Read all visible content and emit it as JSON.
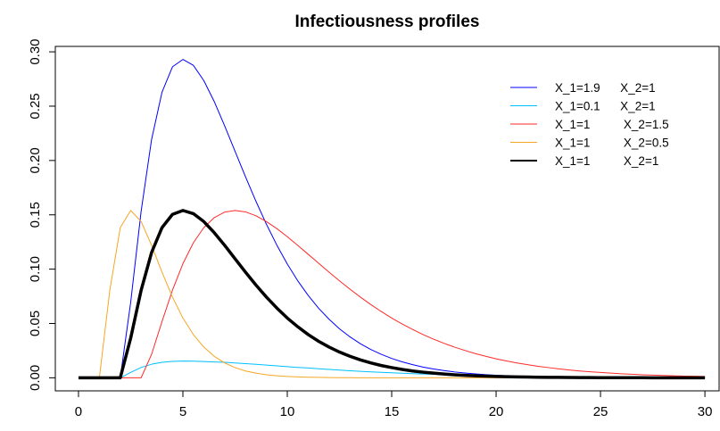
{
  "chart_data": {
    "type": "line",
    "title": "Infectiousness profiles",
    "x": [
      0,
      0.5,
      1,
      1.5,
      2,
      2.5,
      3,
      3.5,
      4,
      4.5,
      5,
      5.5,
      6,
      6.5,
      7,
      7.5,
      8,
      8.5,
      9,
      9.5,
      10,
      10.5,
      11,
      11.5,
      12,
      12.5,
      13,
      13.5,
      14,
      14.5,
      15,
      15.5,
      16,
      16.5,
      17,
      17.5,
      18,
      18.5,
      19,
      19.5,
      20,
      20.5,
      21,
      21.5,
      22,
      22.5,
      23,
      23.5,
      24,
      24.5,
      25,
      25.5,
      26,
      26.5,
      27,
      27.5,
      28,
      28.5,
      29,
      29.5,
      30
    ],
    "series": [
      {
        "name": "X_1=1.9      X_2=1",
        "color": "#0000ff",
        "width": 1,
        "values": [
          0,
          0,
          0,
          0,
          0,
          0.0696,
          0.1533,
          0.2193,
          0.2629,
          0.2862,
          0.293,
          0.2876,
          0.2736,
          0.2543,
          0.2319,
          0.2084,
          0.1849,
          0.1624,
          0.1413,
          0.1221,
          0.1047,
          0.0893,
          0.0758,
          0.064,
          0.0539,
          0.0451,
          0.0377,
          0.0314,
          0.026,
          0.0216,
          0.0178,
          0.0147,
          0.0121,
          0.0099,
          0.0081,
          0.0067,
          0.0054,
          0.0044,
          0.0036,
          0.0029,
          0.0024,
          0.0019,
          0.0016,
          0.0013,
          0.001,
          0.0008,
          0.0007,
          0.0005,
          0.0004,
          0.0004,
          0.0003,
          0.0002,
          0.0002,
          0.0001,
          0.0001,
          0.0001,
          0.0001,
          0.0001,
          0,
          0,
          0
        ]
      },
      {
        "name": "X_1=0.1      X_2=1",
        "color": "#00bfff",
        "width": 1,
        "values": [
          0,
          0,
          0,
          0,
          0,
          0.005,
          0.0095,
          0.0125,
          0.0143,
          0.0151,
          0.0154,
          0.0153,
          0.015,
          0.0146,
          0.0143,
          0.0137,
          0.0131,
          0.0124,
          0.0117,
          0.011,
          0.0103,
          0.0096,
          0.009,
          0.0083,
          0.0077,
          0.0071,
          0.0065,
          0.006,
          0.0055,
          0.005,
          0.0046,
          0.0042,
          0.0038,
          0.0035,
          0.0032,
          0.0029,
          0.0026,
          0.0024,
          0.0022,
          0.002,
          0.0018,
          0.0016,
          0.0014,
          0.0013,
          0.0012,
          0.0011,
          0.001,
          0.0009,
          0.0008,
          0.0007,
          0.0006,
          0.0006,
          0.0005,
          0.0005,
          0.0004,
          0.0004,
          0.0003,
          0.0003,
          0.0003,
          0.0002,
          0.0002
        ]
      },
      {
        "name": "X_1=1          X_2=1.5",
        "color": "#ff2a2a",
        "width": 1,
        "values": [
          0,
          0,
          0,
          0,
          0,
          0,
          0,
          0.0216,
          0.0518,
          0.0806,
          0.105,
          0.1242,
          0.1382,
          0.1474,
          0.1525,
          0.154,
          0.1527,
          0.1491,
          0.1438,
          0.1373,
          0.1299,
          0.1219,
          0.1137,
          0.1054,
          0.0972,
          0.0892,
          0.0816,
          0.0743,
          0.0674,
          0.061,
          0.055,
          0.0495,
          0.0445,
          0.0398,
          0.0356,
          0.0318,
          0.0283,
          0.0252,
          0.0223,
          0.0198,
          0.0175,
          0.0155,
          0.0137,
          0.0121,
          0.0106,
          0.0094,
          0.0082,
          0.0072,
          0.0063,
          0.0056,
          0.0049,
          0.0043,
          0.0037,
          0.0033,
          0.0028,
          0.0025,
          0.0022,
          0.0019,
          0.0016,
          0.0014,
          0.0012
        ]
      },
      {
        "name": "X_1=1          X_2=0.5",
        "color": "#f5a623",
        "width": 1,
        "values": [
          0,
          0,
          0,
          0.0806,
          0.1382,
          0.154,
          0.1438,
          0.1219,
          0.0972,
          0.0743,
          0.055,
          0.0398,
          0.0283,
          0.0198,
          0.0137,
          0.0094,
          0.0063,
          0.0043,
          0.0028,
          0.0019,
          0.0012,
          0.0008,
          0.0005,
          0.0004,
          0.0002,
          0.0001,
          0.0001,
          0,
          0,
          0,
          0,
          0,
          0,
          0,
          0,
          0,
          0,
          0,
          0,
          0,
          0,
          0,
          0,
          0,
          0,
          0,
          0,
          0,
          0,
          0,
          0,
          0,
          0,
          0,
          0,
          0,
          0,
          0,
          0,
          0,
          0
        ]
      },
      {
        "name": "X_1=1          X_2=1",
        "color": "#000000",
        "width": 3.5,
        "values": [
          0,
          0,
          0,
          0,
          0,
          0.0366,
          0.0806,
          0.1153,
          0.1382,
          0.1504,
          0.154,
          0.1511,
          0.1438,
          0.1336,
          0.1219,
          0.1095,
          0.0972,
          0.0853,
          0.0743,
          0.0642,
          0.055,
          0.047,
          0.0398,
          0.0336,
          0.0283,
          0.0237,
          0.0198,
          0.0165,
          0.0137,
          0.0113,
          0.0094,
          0.0077,
          0.0063,
          0.0052,
          0.0043,
          0.0035,
          0.0028,
          0.0023,
          0.0019,
          0.0015,
          0.0012,
          0.001,
          0.0008,
          0.0007,
          0.0005,
          0.0004,
          0.0004,
          0.0003,
          0.0002,
          0.0002,
          0.0001,
          0.0001,
          0.0001,
          0.0001,
          0.0001,
          0,
          0,
          0,
          0,
          0,
          0
        ]
      }
    ],
    "xlim": [
      -1.11,
      30.68
    ],
    "ylim": [
      -0.012,
      0.305
    ],
    "xticks": [
      0,
      5,
      10,
      15,
      20,
      25,
      30
    ],
    "yticks": [
      {
        "value": 0,
        "label": "0.00"
      },
      {
        "value": 0.05,
        "label": "0.05"
      },
      {
        "value": 0.1,
        "label": "0.10"
      },
      {
        "value": 0.15,
        "label": "0.15"
      },
      {
        "value": 0.2,
        "label": "0.20"
      },
      {
        "value": 0.25,
        "label": "0.25"
      },
      {
        "value": 0.3,
        "label": "0.30"
      }
    ],
    "legend": "top-right",
    "grid": false
  }
}
